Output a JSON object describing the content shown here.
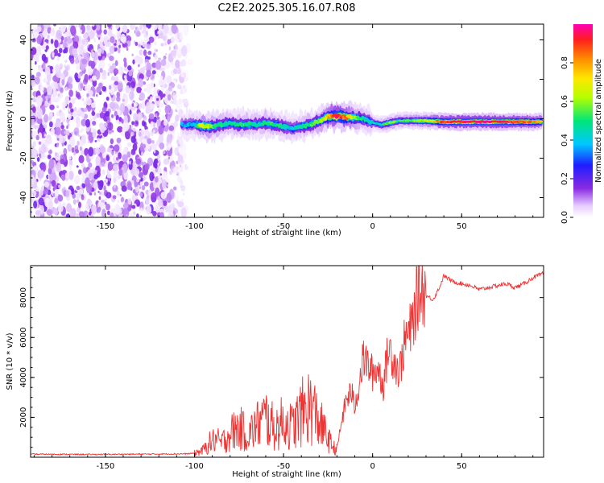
{
  "title": "C2E2.2025.305.16.07.R08",
  "chart_data": [
    {
      "type": "heatmap",
      "xlabel": "Height of straight line (km)",
      "ylabel": "Frequency (Hz)",
      "xlim": [
        -192,
        96
      ],
      "ylim": [
        -50,
        48
      ],
      "xticks": [
        -150,
        -100,
        -50,
        0,
        50
      ],
      "yticks": [
        -40,
        -20,
        0,
        20,
        40
      ],
      "noise_region_x": [
        -192,
        -107
      ],
      "ridge": {
        "x": [
          -107,
          -100,
          -95,
          -90,
          -85,
          -80,
          -75,
          -70,
          -65,
          -60,
          -55,
          -50,
          -45,
          -40,
          -35,
          -30,
          -25,
          -20,
          -15,
          -10,
          -5,
          0,
          5,
          10,
          15,
          20,
          30,
          40,
          50,
          60,
          70,
          80,
          95
        ],
        "f": [
          -3,
          -3,
          -3.5,
          -4,
          -3,
          -2,
          -3,
          -2.5,
          -3,
          -2,
          -3,
          -4,
          -5,
          -4,
          -3,
          -1,
          1,
          1.5,
          1,
          0.5,
          0,
          -2,
          -3,
          -2,
          -1,
          -1,
          -1,
          -1.5,
          -1.5,
          -1.5,
          -1.5,
          -1.5,
          -1.5
        ],
        "amplitude": [
          0.35,
          0.4,
          0.7,
          0.55,
          0.5,
          0.45,
          0.5,
          0.5,
          0.45,
          0.5,
          0.5,
          0.45,
          0.4,
          0.45,
          0.5,
          0.55,
          0.75,
          0.95,
          0.85,
          0.6,
          0.45,
          0.4,
          0.45,
          0.6,
          0.5,
          0.55,
          0.65,
          0.9,
          0.95,
          0.95,
          0.95,
          0.9,
          0.8
        ]
      }
    },
    {
      "type": "line",
      "xlabel": "Height of straight line (km)",
      "ylabel": "SNR (10 * v/v)",
      "xlim": [
        -192,
        96
      ],
      "ylim": [
        0,
        9600
      ],
      "xticks": [
        -150,
        -100,
        -50,
        0,
        50
      ],
      "yticks": [
        2000,
        4000,
        6000,
        8000
      ],
      "color": "#ee3333",
      "series": [
        {
          "name": "SNR",
          "x": [
            -192,
            -180,
            -160,
            -140,
            -120,
            -105,
            -100,
            -95,
            -92,
            -88,
            -85,
            -80,
            -75,
            -70,
            -65,
            -60,
            -55,
            -50,
            -45,
            -40,
            -35,
            -30,
            -25,
            -22,
            -20,
            -18,
            -15,
            -12,
            -10,
            -8,
            -5,
            -2,
            0,
            3,
            6,
            9,
            12,
            15,
            18,
            22,
            25,
            28,
            30,
            34,
            38,
            40,
            45,
            50,
            55,
            60,
            65,
            70,
            75,
            80,
            85,
            90,
            96
          ],
          "y": [
            150,
            150,
            140,
            150,
            160,
            170,
            200,
            350,
            700,
            900,
            700,
            1200,
            1500,
            1100,
            1600,
            2000,
            1400,
            1800,
            1500,
            2200,
            2600,
            1800,
            900,
            500,
            400,
            1500,
            2800,
            3300,
            2500,
            3500,
            5000,
            4500,
            4200,
            4500,
            3600,
            5500,
            4900,
            4200,
            5800,
            6500,
            8000,
            8500,
            8100,
            7900,
            8600,
            9100,
            8800,
            8700,
            8600,
            8400,
            8500,
            8600,
            8700,
            8500,
            8700,
            9000,
            9200
          ]
        }
      ]
    },
    {
      "type": "colorbar",
      "label": "Normalized spectral amplitude",
      "range": [
        0,
        1
      ],
      "ticks": [
        0.0,
        0.2,
        0.4,
        0.6,
        0.8
      ]
    }
  ]
}
